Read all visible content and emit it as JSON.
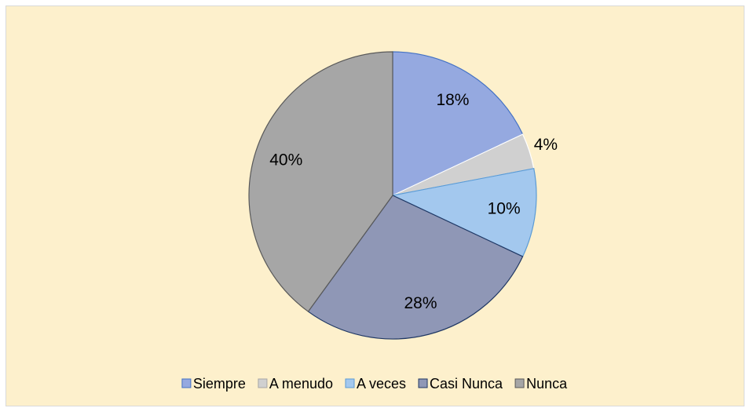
{
  "chart_data": {
    "type": "pie",
    "categories": [
      "Siempre",
      "A menudo",
      "A veces",
      "Casi Nunca",
      "Nunca"
    ],
    "values": [
      18,
      4,
      10,
      28,
      40
    ],
    "value_labels": [
      "18%",
      "4%",
      "10%",
      "28%",
      "40%"
    ],
    "colors": [
      "#95a9e0",
      "#d0d0d0",
      "#a3c8ee",
      "#8f97b6",
      "#a6a6a6"
    ],
    "edge_colors": [
      "#4472c4",
      "#ffffff",
      "#5b9bd5",
      "#203864",
      "#595959"
    ],
    "legend": "bottom"
  }
}
